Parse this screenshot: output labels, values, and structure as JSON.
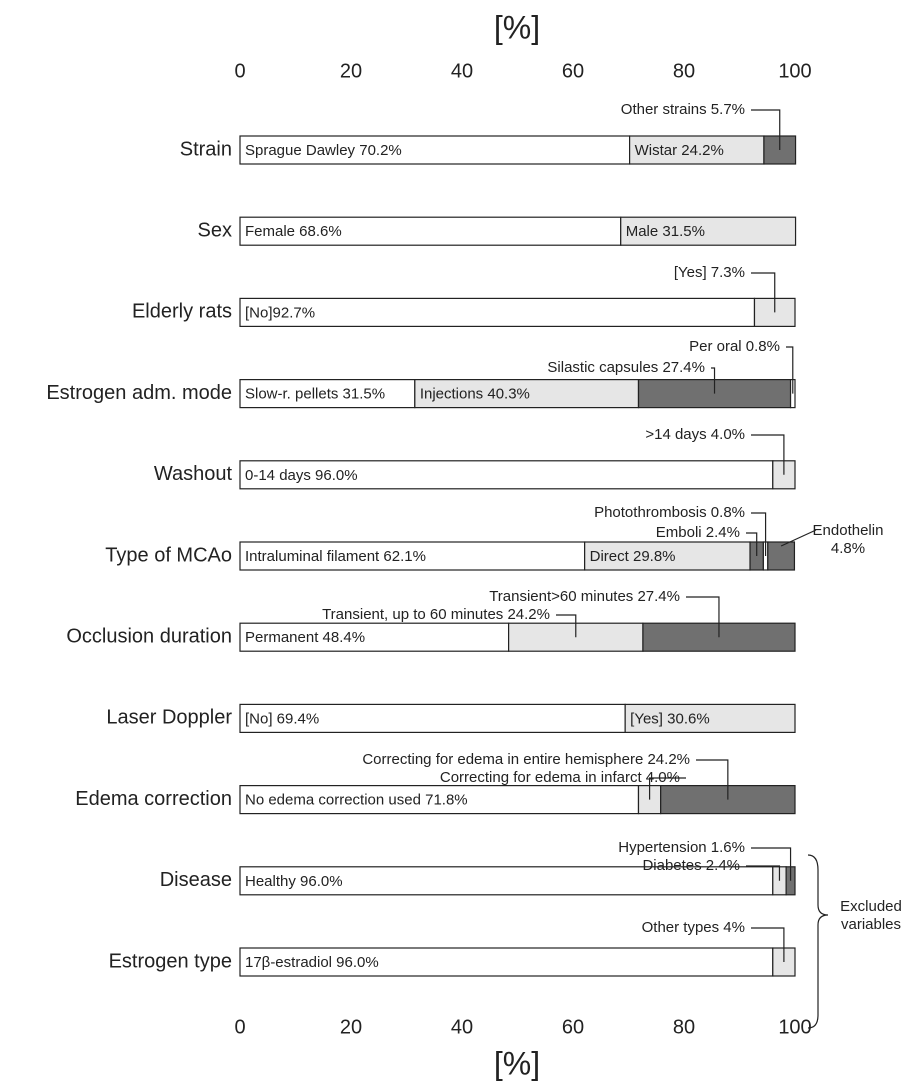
{
  "chart_data": {
    "type": "stacked-bar",
    "x_label": "[%]",
    "xlim": [
      0,
      100
    ],
    "xticks": [
      0,
      20,
      40,
      60,
      80,
      100
    ],
    "rows": [
      {
        "label": "Strain",
        "segments": [
          {
            "label": "Sprague Dawley 70.2%",
            "value": 70.2,
            "color": "#ffffff"
          },
          {
            "label": "Wistar 24.2%",
            "value": 24.2,
            "color": "#e6e6e6"
          },
          {
            "label": "Other strains 5.7%",
            "value": 5.7,
            "color": "#707070"
          }
        ]
      },
      {
        "label": "Sex",
        "segments": [
          {
            "label": "Female 68.6%",
            "value": 68.6,
            "color": "#ffffff"
          },
          {
            "label": "Male 31.5%",
            "value": 31.5,
            "color": "#e6e6e6"
          }
        ]
      },
      {
        "label": "Elderly rats",
        "segments": [
          {
            "label": "[No]92.7%",
            "value": 92.7,
            "color": "#ffffff"
          },
          {
            "label": "[Yes] 7.3%",
            "value": 7.3,
            "color": "#e6e6e6"
          }
        ]
      },
      {
        "label": "Estrogen adm. mode",
        "segments": [
          {
            "label": "Slow-r. pellets 31.5%",
            "value": 31.5,
            "color": "#ffffff"
          },
          {
            "label": "Injections 40.3%",
            "value": 40.3,
            "color": "#e6e6e6"
          },
          {
            "label": "Silastic capsules 27.4%",
            "value": 27.4,
            "color": "#707070"
          },
          {
            "label": "Per oral 0.8%",
            "value": 0.8,
            "color": "#ffffff"
          }
        ]
      },
      {
        "label": "Washout",
        "segments": [
          {
            "label": "0-14 days 96.0%",
            "value": 96.0,
            "color": "#ffffff"
          },
          {
            "label": ">14 days 4.0%",
            "value": 4.0,
            "color": "#e6e6e6"
          }
        ]
      },
      {
        "label": "Type of MCAo",
        "segments": [
          {
            "label": "Intraluminal filament 62.1%",
            "value": 62.1,
            "color": "#ffffff"
          },
          {
            "label": "Direct 29.8%",
            "value": 29.8,
            "color": "#e6e6e6"
          },
          {
            "label": "Emboli 2.4%",
            "value": 2.4,
            "color": "#707070"
          },
          {
            "label": "Photothrombosis 0.8%",
            "value": 0.8,
            "color": "#ffffff"
          },
          {
            "label": "Endothelin 4.8%",
            "value": 4.8,
            "color": "#707070"
          }
        ]
      },
      {
        "label": "Occlusion duration",
        "segments": [
          {
            "label": "Permanent 48.4%",
            "value": 48.4,
            "color": "#ffffff"
          },
          {
            "label": "Transient, up to 60 minutes 24.2%",
            "value": 24.2,
            "color": "#e6e6e6"
          },
          {
            "label": "Transient>60 minutes 27.4%",
            "value": 27.4,
            "color": "#707070"
          }
        ]
      },
      {
        "label": "Laser Doppler",
        "segments": [
          {
            "label": "[No] 69.4%",
            "value": 69.4,
            "color": "#ffffff"
          },
          {
            "label": "[Yes] 30.6%",
            "value": 30.6,
            "color": "#e6e6e6"
          }
        ]
      },
      {
        "label": "Edema correction",
        "segments": [
          {
            "label": "No edema correction used 71.8%",
            "value": 71.8,
            "color": "#ffffff"
          },
          {
            "label": "Correcting for edema in infarct 4.0%",
            "value": 4.0,
            "color": "#e6e6e6"
          },
          {
            "label": "Correcting for edema in entire hemisphere 24.2%",
            "value": 24.2,
            "color": "#707070"
          }
        ]
      },
      {
        "label": "Disease",
        "segments": [
          {
            "label": "Healthy 96.0%",
            "value": 96.0,
            "color": "#ffffff"
          },
          {
            "label": "Diabetes 2.4%",
            "value": 2.4,
            "color": "#e6e6e6"
          },
          {
            "label": "Hypertension 1.6%",
            "value": 1.6,
            "color": "#707070"
          }
        ]
      },
      {
        "label": "Estrogen type",
        "segments": [
          {
            "label": "17β-estradiol 96.0%",
            "value": 96.0,
            "color": "#ffffff"
          },
          {
            "label": "Other types 4%",
            "value": 4,
            "color": "#e6e6e6"
          }
        ]
      }
    ],
    "annotation": "Excluded variables"
  }
}
